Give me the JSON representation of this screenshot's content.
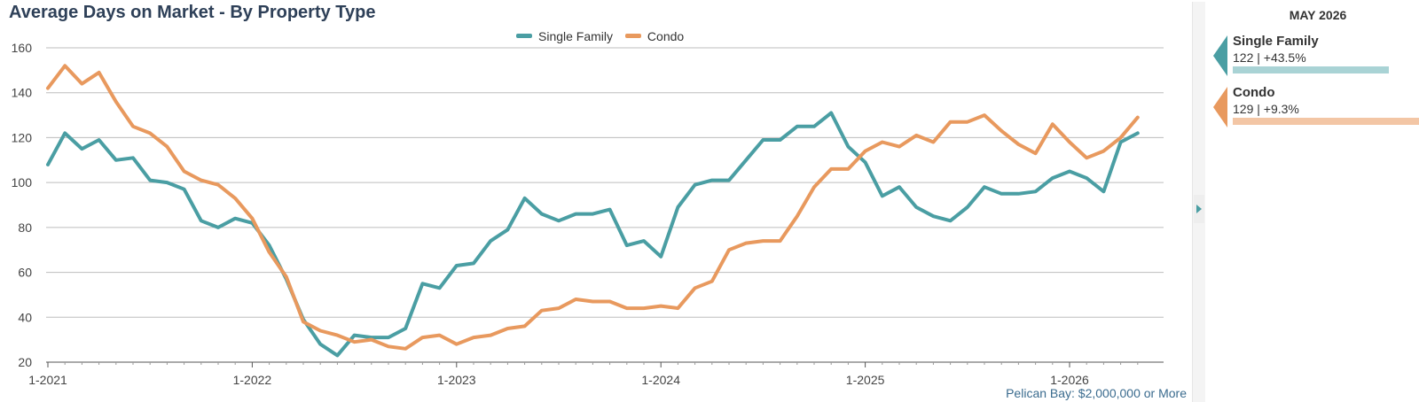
{
  "chart_data": {
    "type": "line",
    "title": "Average Days on Market - By Property Type",
    "xlabel": "",
    "ylabel": "",
    "ylim": [
      20,
      160
    ],
    "yticks": [
      20,
      40,
      60,
      80,
      100,
      120,
      140,
      160
    ],
    "x_tick_labels": [
      "1-2021",
      "1-2022",
      "1-2023",
      "1-2024",
      "1-2025",
      "1-2026"
    ],
    "x_start": "2021-01",
    "x_end": "2026-05",
    "grid": true,
    "legend_position": "top-center",
    "series": [
      {
        "name": "Single Family",
        "color": "#4a9ea3",
        "values": [
          108,
          122,
          115,
          119,
          110,
          111,
          101,
          100,
          97,
          83,
          80,
          84,
          82,
          72,
          57,
          39,
          28,
          23,
          32,
          31,
          31,
          35,
          55,
          53,
          63,
          64,
          74,
          79,
          93,
          86,
          83,
          86,
          86,
          88,
          72,
          74,
          67,
          89,
          99,
          101,
          101,
          110,
          119,
          119,
          125,
          125,
          131,
          116,
          109,
          94,
          98,
          89,
          85,
          83,
          89,
          98,
          95,
          95,
          96,
          102,
          105,
          102,
          96,
          118,
          122
        ]
      },
      {
        "name": "Condo",
        "color": "#e8995e",
        "values": [
          142,
          152,
          144,
          149,
          136,
          125,
          122,
          116,
          105,
          101,
          99,
          93,
          84,
          69,
          58,
          38,
          34,
          32,
          29,
          30,
          27,
          26,
          31,
          32,
          28,
          31,
          32,
          35,
          36,
          43,
          44,
          48,
          47,
          47,
          44,
          44,
          45,
          44,
          53,
          56,
          70,
          73,
          74,
          74,
          85,
          98,
          106,
          106,
          114,
          118,
          116,
          121,
          118,
          127,
          127,
          130,
          123,
          117,
          113,
          126,
          118,
          111,
          114,
          120,
          129
        ]
      }
    ]
  },
  "source_note": "Pelican Bay: $2,000,000 or More",
  "side_panel": {
    "period": "MAY 2026",
    "items": [
      {
        "name": "Single Family",
        "value_text": "122 | +43.5%",
        "color": "#4a9ea3",
        "bar_color": "#a9d3d5",
        "bar_fraction": 0.435
      },
      {
        "name": "Condo",
        "value_text": "129 | +9.3%",
        "color": "#e8995e",
        "bar_color": "#f3c6a5",
        "bar_fraction": 0.093
      }
    ]
  },
  "toggle_icon": "collapse-arrow-icon"
}
